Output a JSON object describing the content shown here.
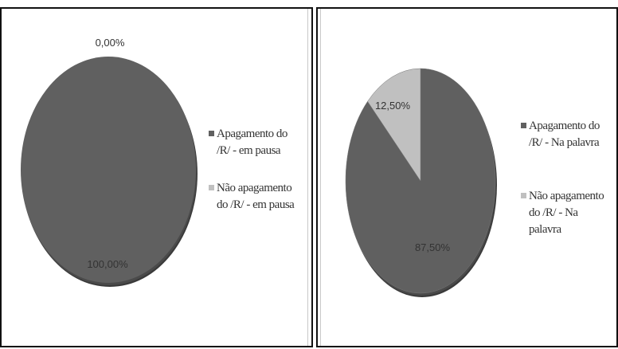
{
  "chart_data": [
    {
      "type": "pie",
      "title": "",
      "colors": [
        "#606060",
        "#c0c0c0"
      ],
      "legend_position": "right",
      "slices": [
        {
          "label": "Apagamento do /R/ - em pausa",
          "value": 100.0,
          "data_label": "100,00%"
        },
        {
          "label": "Não apagamento do /R/ - em pausa",
          "value": 0.0,
          "data_label": "0,00%"
        }
      ]
    },
    {
      "type": "pie",
      "title": "",
      "colors": [
        "#606060",
        "#c0c0c0"
      ],
      "legend_position": "right",
      "slices": [
        {
          "label": "Apagamento do /R/ - Na palavra",
          "value": 87.5,
          "data_label": "87,50%"
        },
        {
          "label": "Não apagamento do /R/ - Na palavra",
          "value": 12.5,
          "data_label": "12,50%"
        }
      ]
    }
  ],
  "legends": [
    {
      "items": [
        {
          "lines": [
            "Apagamento do",
            "/R/ - em pausa"
          ]
        },
        {
          "lines": [
            "Não apagamento",
            "do /R/ - em pausa"
          ]
        }
      ]
    },
    {
      "items": [
        {
          "lines": [
            "Apagamento do",
            "/R/ - Na palavra"
          ]
        },
        {
          "lines": [
            "Não apagamento",
            "do /R/ - Na",
            "palavra"
          ]
        }
      ]
    }
  ]
}
